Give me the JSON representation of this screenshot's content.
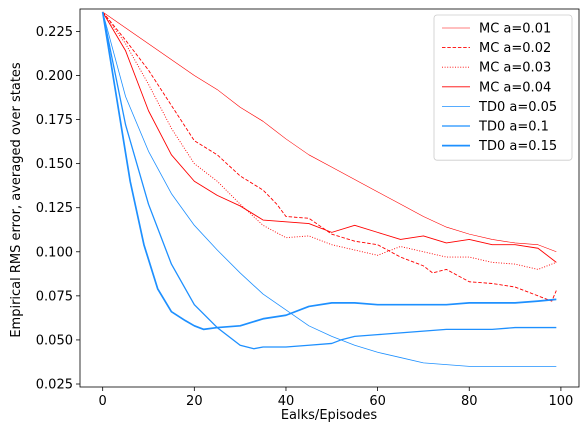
{
  "chart_data": {
    "type": "line",
    "title": "",
    "xlabel": "Ealks/Episodes",
    "ylabel": "Empirical RMS error, averaged over states",
    "xlim": [
      -4.95,
      103.95
    ],
    "ylim": [
      0.0233,
      0.2377
    ],
    "xticks": [
      0,
      20,
      40,
      60,
      80,
      100
    ],
    "yticks": [
      0.025,
      0.05,
      0.075,
      0.1,
      0.125,
      0.15,
      0.175,
      0.2,
      0.225
    ],
    "xtick_labels": [
      "0",
      "20",
      "40",
      "60",
      "80",
      "100"
    ],
    "ytick_labels": [
      "0.025",
      "0.050",
      "0.075",
      "0.100",
      "0.125",
      "0.150",
      "0.175",
      "0.200",
      "0.225"
    ],
    "grid": false,
    "legend_position": "top-right",
    "series": [
      {
        "name": "MC a=0.01",
        "color": "#ff0000",
        "dash": "solid",
        "width": 0.6,
        "points": [
          [
            0,
            0.236
          ],
          [
            5,
            0.227
          ],
          [
            10,
            0.218
          ],
          [
            15,
            0.209
          ],
          [
            20,
            0.2
          ],
          [
            25,
            0.192
          ],
          [
            30,
            0.182
          ],
          [
            35,
            0.174
          ],
          [
            40,
            0.164
          ],
          [
            45,
            0.155
          ],
          [
            50,
            0.148
          ],
          [
            55,
            0.141
          ],
          [
            60,
            0.134
          ],
          [
            65,
            0.127
          ],
          [
            70,
            0.12
          ],
          [
            75,
            0.114
          ],
          [
            80,
            0.11
          ],
          [
            85,
            0.107
          ],
          [
            90,
            0.105
          ],
          [
            95,
            0.104
          ],
          [
            99,
            0.1
          ]
        ]
      },
      {
        "name": "MC a=0.02",
        "color": "#ff0000",
        "dash": "dashed",
        "width": 0.9,
        "points": [
          [
            0,
            0.236
          ],
          [
            5,
            0.22
          ],
          [
            10,
            0.203
          ],
          [
            15,
            0.183
          ],
          [
            20,
            0.163
          ],
          [
            25,
            0.155
          ],
          [
            30,
            0.143
          ],
          [
            35,
            0.135
          ],
          [
            38,
            0.127
          ],
          [
            40,
            0.12
          ],
          [
            45,
            0.119
          ],
          [
            50,
            0.11
          ],
          [
            55,
            0.106
          ],
          [
            60,
            0.104
          ],
          [
            65,
            0.097
          ],
          [
            70,
            0.092
          ],
          [
            72,
            0.088
          ],
          [
            75,
            0.09
          ],
          [
            80,
            0.083
          ],
          [
            85,
            0.082
          ],
          [
            90,
            0.08
          ],
          [
            95,
            0.075
          ],
          [
            98,
            0.072
          ],
          [
            99,
            0.078
          ]
        ]
      },
      {
        "name": "MC a=0.03",
        "color": "#ff0000",
        "dash": "dotted",
        "width": 0.9,
        "points": [
          [
            0,
            0.236
          ],
          [
            5,
            0.218
          ],
          [
            10,
            0.195
          ],
          [
            15,
            0.17
          ],
          [
            20,
            0.15
          ],
          [
            25,
            0.14
          ],
          [
            30,
            0.127
          ],
          [
            35,
            0.115
          ],
          [
            40,
            0.108
          ],
          [
            45,
            0.109
          ],
          [
            50,
            0.104
          ],
          [
            55,
            0.101
          ],
          [
            60,
            0.098
          ],
          [
            65,
            0.103
          ],
          [
            70,
            0.1
          ],
          [
            75,
            0.097
          ],
          [
            80,
            0.097
          ],
          [
            85,
            0.094
          ],
          [
            90,
            0.093
          ],
          [
            95,
            0.09
          ],
          [
            99,
            0.094
          ]
        ]
      },
      {
        "name": "MC a=0.04",
        "color": "#ff0000",
        "dash": "solid",
        "width": 0.9,
        "points": [
          [
            0,
            0.236
          ],
          [
            5,
            0.214
          ],
          [
            10,
            0.18
          ],
          [
            15,
            0.155
          ],
          [
            20,
            0.14
          ],
          [
            25,
            0.132
          ],
          [
            30,
            0.126
          ],
          [
            35,
            0.118
          ],
          [
            40,
            0.117
          ],
          [
            45,
            0.116
          ],
          [
            50,
            0.111
          ],
          [
            55,
            0.115
          ],
          [
            60,
            0.111
          ],
          [
            65,
            0.107
          ],
          [
            70,
            0.109
          ],
          [
            75,
            0.105
          ],
          [
            80,
            0.107
          ],
          [
            85,
            0.104
          ],
          [
            90,
            0.104
          ],
          [
            95,
            0.102
          ],
          [
            99,
            0.094
          ]
        ]
      },
      {
        "name": "TD0 a=0.05",
        "color": "#1e90ff",
        "dash": "solid",
        "width": 0.8,
        "points": [
          [
            0,
            0.236
          ],
          [
            5,
            0.188
          ],
          [
            10,
            0.157
          ],
          [
            15,
            0.133
          ],
          [
            20,
            0.115
          ],
          [
            25,
            0.101
          ],
          [
            30,
            0.088
          ],
          [
            35,
            0.076
          ],
          [
            40,
            0.067
          ],
          [
            45,
            0.058
          ],
          [
            50,
            0.052
          ],
          [
            55,
            0.047
          ],
          [
            60,
            0.043
          ],
          [
            65,
            0.04
          ],
          [
            70,
            0.037
          ],
          [
            75,
            0.036
          ],
          [
            80,
            0.035
          ],
          [
            85,
            0.035
          ],
          [
            90,
            0.035
          ],
          [
            95,
            0.035
          ],
          [
            99,
            0.035
          ]
        ]
      },
      {
        "name": "TD0 a=0.1",
        "color": "#1e90ff",
        "dash": "solid",
        "width": 1.3,
        "points": [
          [
            0,
            0.236
          ],
          [
            5,
            0.172
          ],
          [
            10,
            0.127
          ],
          [
            15,
            0.093
          ],
          [
            20,
            0.07
          ],
          [
            25,
            0.057
          ],
          [
            30,
            0.047
          ],
          [
            33,
            0.045
          ],
          [
            35,
            0.046
          ],
          [
            40,
            0.046
          ],
          [
            45,
            0.047
          ],
          [
            50,
            0.048
          ],
          [
            52,
            0.05
          ],
          [
            55,
            0.052
          ],
          [
            60,
            0.053
          ],
          [
            65,
            0.054
          ],
          [
            70,
            0.055
          ],
          [
            75,
            0.056
          ],
          [
            80,
            0.056
          ],
          [
            85,
            0.056
          ],
          [
            90,
            0.057
          ],
          [
            95,
            0.057
          ],
          [
            99,
            0.057
          ]
        ]
      },
      {
        "name": "TD0 a=0.15",
        "color": "#1e90ff",
        "dash": "solid",
        "width": 1.7,
        "points": [
          [
            0,
            0.236
          ],
          [
            3,
            0.188
          ],
          [
            6,
            0.14
          ],
          [
            9,
            0.104
          ],
          [
            12,
            0.079
          ],
          [
            15,
            0.066
          ],
          [
            18,
            0.061
          ],
          [
            20,
            0.058
          ],
          [
            22,
            0.056
          ],
          [
            25,
            0.057
          ],
          [
            30,
            0.058
          ],
          [
            35,
            0.062
          ],
          [
            40,
            0.064
          ],
          [
            45,
            0.069
          ],
          [
            50,
            0.071
          ],
          [
            55,
            0.071
          ],
          [
            60,
            0.07
          ],
          [
            65,
            0.07
          ],
          [
            70,
            0.07
          ],
          [
            75,
            0.07
          ],
          [
            80,
            0.071
          ],
          [
            85,
            0.071
          ],
          [
            90,
            0.071
          ],
          [
            95,
            0.072
          ],
          [
            99,
            0.073
          ]
        ]
      }
    ]
  }
}
